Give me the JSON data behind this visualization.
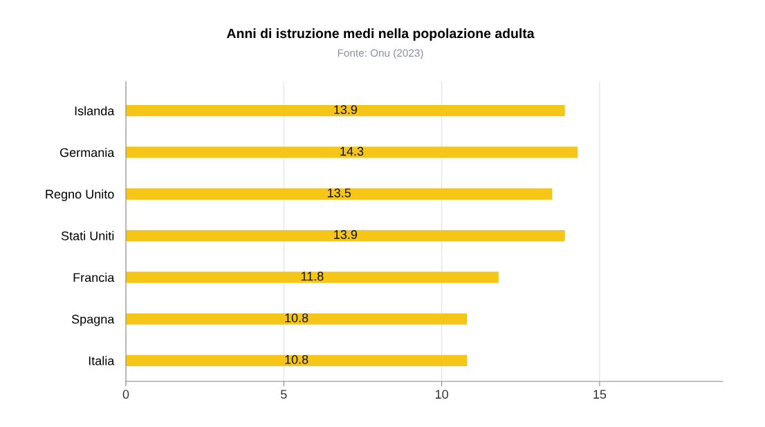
{
  "chart_data": {
    "type": "bar",
    "orientation": "horizontal",
    "title": "Anni di istruzione medi nella popolazione adulta",
    "subtitle": "Fonte: Onu (2023)",
    "categories": [
      "Islanda",
      "Germania",
      "Regno Unito",
      "Stati Uniti",
      "Francia",
      "Spagna",
      "Italia"
    ],
    "values": [
      13.9,
      14.3,
      13.5,
      13.9,
      11.8,
      10.8,
      10.8
    ],
    "color": "#f5c518",
    "xlim": [
      0,
      18.9
    ],
    "xticks": [
      0,
      5,
      10,
      15
    ],
    "grid": "x",
    "data_labels": true
  }
}
